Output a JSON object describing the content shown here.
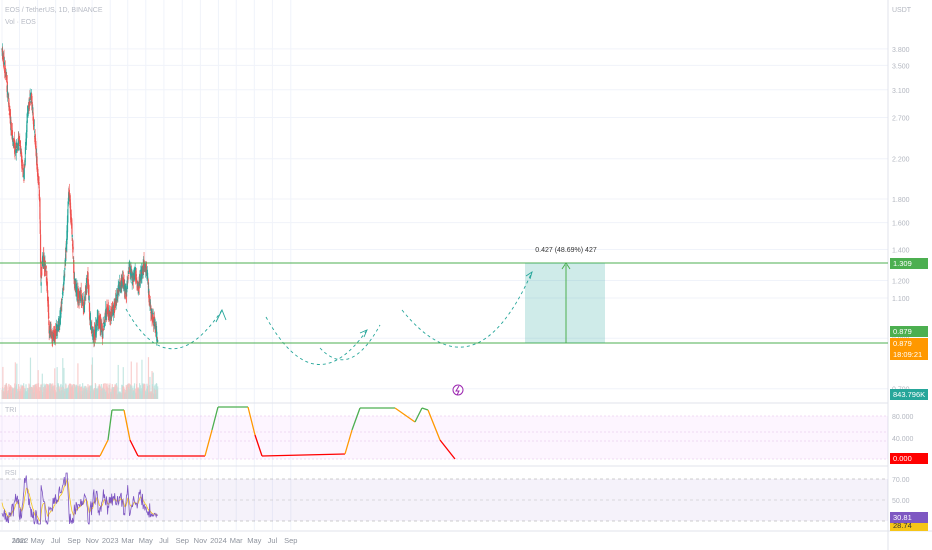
{
  "header": {
    "symbol_line": "EOS / TetherUS, 1D, BINANCE",
    "volume_label": "Vol · EOS",
    "indicator1_label": "TRI",
    "indicator2_label": "RSI"
  },
  "price_axis": {
    "unit": "USDT",
    "ticks": [
      "3.800",
      "3.500",
      "3.100",
      "2.700",
      "2.200",
      "1.800",
      "1.600",
      "1.400",
      "1.200",
      "1.100",
      "0.900",
      "0.700"
    ]
  },
  "indicator1_axis": {
    "ticks": [
      "80.000",
      "40.000"
    ]
  },
  "indicator2_axis": {
    "ticks": [
      "70.00",
      "50.00"
    ]
  },
  "badges": {
    "resistance": "1.309",
    "support": "0.879",
    "last_price": "0.879",
    "countdown": "18:09:21",
    "volume": "843.796K",
    "indicator1": "0.000",
    "indicator2_a": "30.81",
    "indicator2_b": "28.74"
  },
  "measure_label": "0.427 (48.69%) 427",
  "colors": {
    "up": "#26a69a",
    "down": "#ef5350",
    "level_line": "#4caf50",
    "pattern": "#26a69a",
    "last_price_badge": "#ff9800",
    "volume_badge": "#26a69a",
    "indicator_low": "#ff0000",
    "rsi_line": "#7e57c2",
    "rsi_signal": "#f5c518"
  },
  "x_axis": {
    "labels": [
      "2022",
      "Mar",
      "May",
      "Jul",
      "Sep",
      "Nov",
      "2023",
      "Mar",
      "May",
      "Jul",
      "Sep",
      "Nov",
      "2024",
      "Mar",
      "May",
      "Jul",
      "Sep"
    ]
  },
  "chart_data": {
    "type": "line",
    "title": "EOS / TetherUS, 1D, BINANCE",
    "ylabel": "USDT",
    "series": [
      {
        "name": "EOS / TetherUS",
        "x": [
          "2022-01",
          "2022-02",
          "2022-03",
          "2022-04",
          "2022-05",
          "2022-06",
          "2022-07",
          "2022-08",
          "2022-09",
          "2022-10",
          "2022-11",
          "2022-12",
          "2023-01",
          "2023-02",
          "2023-03",
          "2023-04",
          "2023-05"
        ],
        "values": [
          3.8,
          2.3,
          3.0,
          2.4,
          1.2,
          0.95,
          1.0,
          1.85,
          1.3,
          1.2,
          0.95,
          0.9,
          1.05,
          1.15,
          1.3,
          1.2,
          0.879
        ]
      }
    ],
    "levels": {
      "resistance": 1.309,
      "support": 0.879
    },
    "measurement": {
      "change": 0.427,
      "percent": 48.69,
      "bars": 427
    },
    "indicator_tri": {
      "range": [
        0,
        100
      ],
      "last": 0.0
    },
    "indicator_rsi": {
      "range": [
        0,
        100
      ],
      "last": 30.81,
      "signal": 28.74
    },
    "volume_last": "843.796K"
  }
}
